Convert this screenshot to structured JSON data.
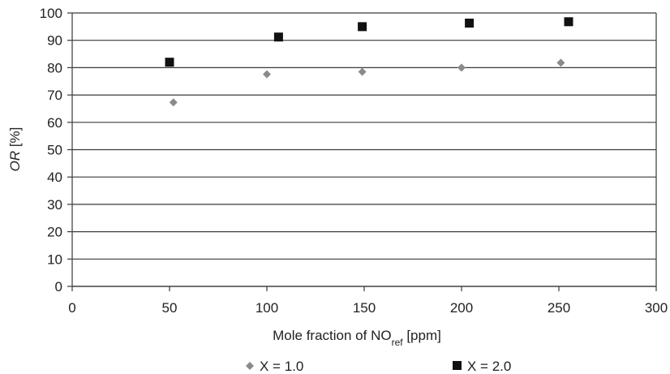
{
  "chart_data": {
    "type": "scatter",
    "title": "",
    "xlabel": {
      "text": "Mole fraction of NO",
      "subscript": "ref",
      "suffix": " [ppm]"
    },
    "ylabel": {
      "italic": "OR",
      "suffix": " [%]"
    },
    "xlim": [
      0,
      300
    ],
    "ylim": [
      0,
      100
    ],
    "x_ticks": [
      0,
      50,
      100,
      150,
      200,
      250,
      300
    ],
    "y_ticks": [
      0,
      10,
      20,
      30,
      40,
      50,
      60,
      70,
      80,
      90,
      100
    ],
    "grid": {
      "horizontal": true,
      "vertical": false
    },
    "legend_position": "bottom",
    "series": [
      {
        "name": "X = 1.0",
        "marker": "diamond",
        "color": "#8a8a8a",
        "points": [
          {
            "x": 52,
            "y": 67.3
          },
          {
            "x": 100,
            "y": 77.6
          },
          {
            "x": 149,
            "y": 78.5
          },
          {
            "x": 200,
            "y": 80.0
          },
          {
            "x": 251,
            "y": 81.8
          }
        ]
      },
      {
        "name": "X = 2.0",
        "marker": "square",
        "color": "#111111",
        "points": [
          {
            "x": 50,
            "y": 82.0
          },
          {
            "x": 106,
            "y": 91.2
          },
          {
            "x": 149,
            "y": 95.0
          },
          {
            "x": 204,
            "y": 96.3
          },
          {
            "x": 255,
            "y": 96.8
          }
        ]
      }
    ]
  }
}
